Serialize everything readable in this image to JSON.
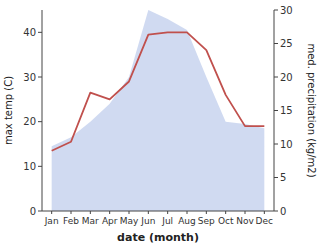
{
  "chart_data": {
    "type": "line",
    "xlabel": "date (month)",
    "ylabel": "max temp (C)",
    "y2label": "med. precipitation (kg/m2)",
    "categories": [
      "Jan",
      "Feb",
      "Mar",
      "Apr",
      "May",
      "Jun",
      "Jul",
      "Aug",
      "Sep",
      "Oct",
      "Nov",
      "Dec"
    ],
    "series": [
      {
        "type": "area",
        "color": "#c8d4ee",
        "values": [
          14.5,
          16.5,
          20.0,
          24.0,
          30.0,
          45.0,
          43.0,
          40.5,
          30.0,
          20.0,
          19.5,
          18.5
        ]
      },
      {
        "type": "line",
        "color": "#c0504d",
        "values": [
          13.5,
          15.5,
          26.5,
          25.0,
          29.0,
          39.5,
          40.0,
          40.0,
          36.0,
          26.0,
          19.0,
          19.0
        ]
      }
    ],
    "ylim": [
      0,
      45
    ],
    "yticks": [
      0,
      10,
      20,
      30,
      40
    ],
    "y2lim": [
      0,
      30
    ],
    "y2ticks": [
      0,
      5,
      10,
      15,
      20,
      25,
      30
    ],
    "grid": false
  }
}
